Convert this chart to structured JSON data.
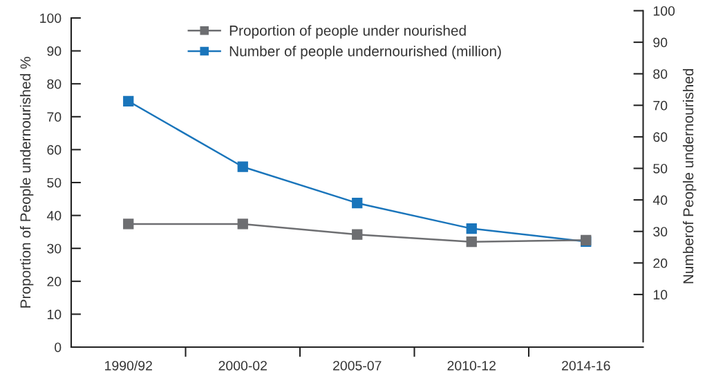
{
  "chart_data": {
    "type": "line",
    "ylabel": "Proportion of People undernourished %",
    "y2label": "Numberof People undernourished",
    "categories": [
      "1990/92",
      "2000-02",
      "2005-07",
      "2010-12",
      "2014-16"
    ],
    "series": [
      {
        "name": "Proportion of people under nourished",
        "color": "#6d6e71",
        "values": [
          37.4,
          37.4,
          34.2,
          32.0,
          32.5
        ]
      },
      {
        "name": "Number of people undernourished (million)",
        "color": "#1a75bb",
        "axis": "y2",
        "values": [
          71.3,
          50.5,
          39.0,
          30.9,
          26.8
        ]
      }
    ],
    "ylim": [
      0,
      100
    ],
    "yticks": [
      0,
      10,
      20,
      30,
      40,
      50,
      60,
      70,
      80,
      90,
      100
    ],
    "y2lim": [
      -5,
      100
    ],
    "y2ticks": [
      10,
      20,
      30,
      40,
      50,
      60,
      70,
      80,
      90,
      100
    ],
    "marker": "square",
    "line_style": "solid",
    "legend": "top",
    "grid": false
  }
}
